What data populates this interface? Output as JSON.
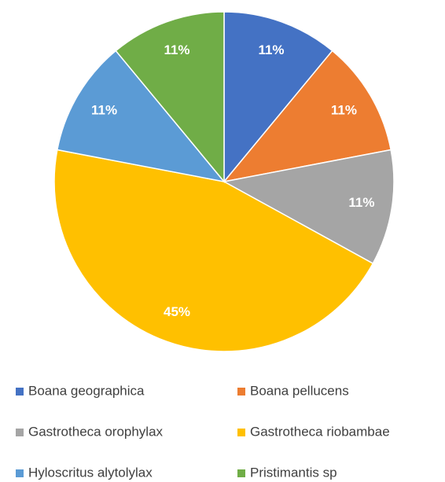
{
  "chart_data": {
    "type": "pie",
    "categories": [
      "Boana geographica",
      "Boana pellucens",
      "Gastrotheca orophylax",
      "Gastrotheca riobambae",
      "Hyloscritus alytolylax",
      "Pristimantis sp"
    ],
    "values": [
      11,
      11,
      11,
      45,
      11,
      11
    ],
    "value_labels": [
      "11%",
      "11%",
      "11%",
      "45%",
      "11%",
      "11%"
    ],
    "colors": [
      "#4472c4",
      "#ed7d31",
      "#a5a5a5",
      "#ffc000",
      "#5b9bd5",
      "#70ad47"
    ],
    "legend": "bottom"
  }
}
